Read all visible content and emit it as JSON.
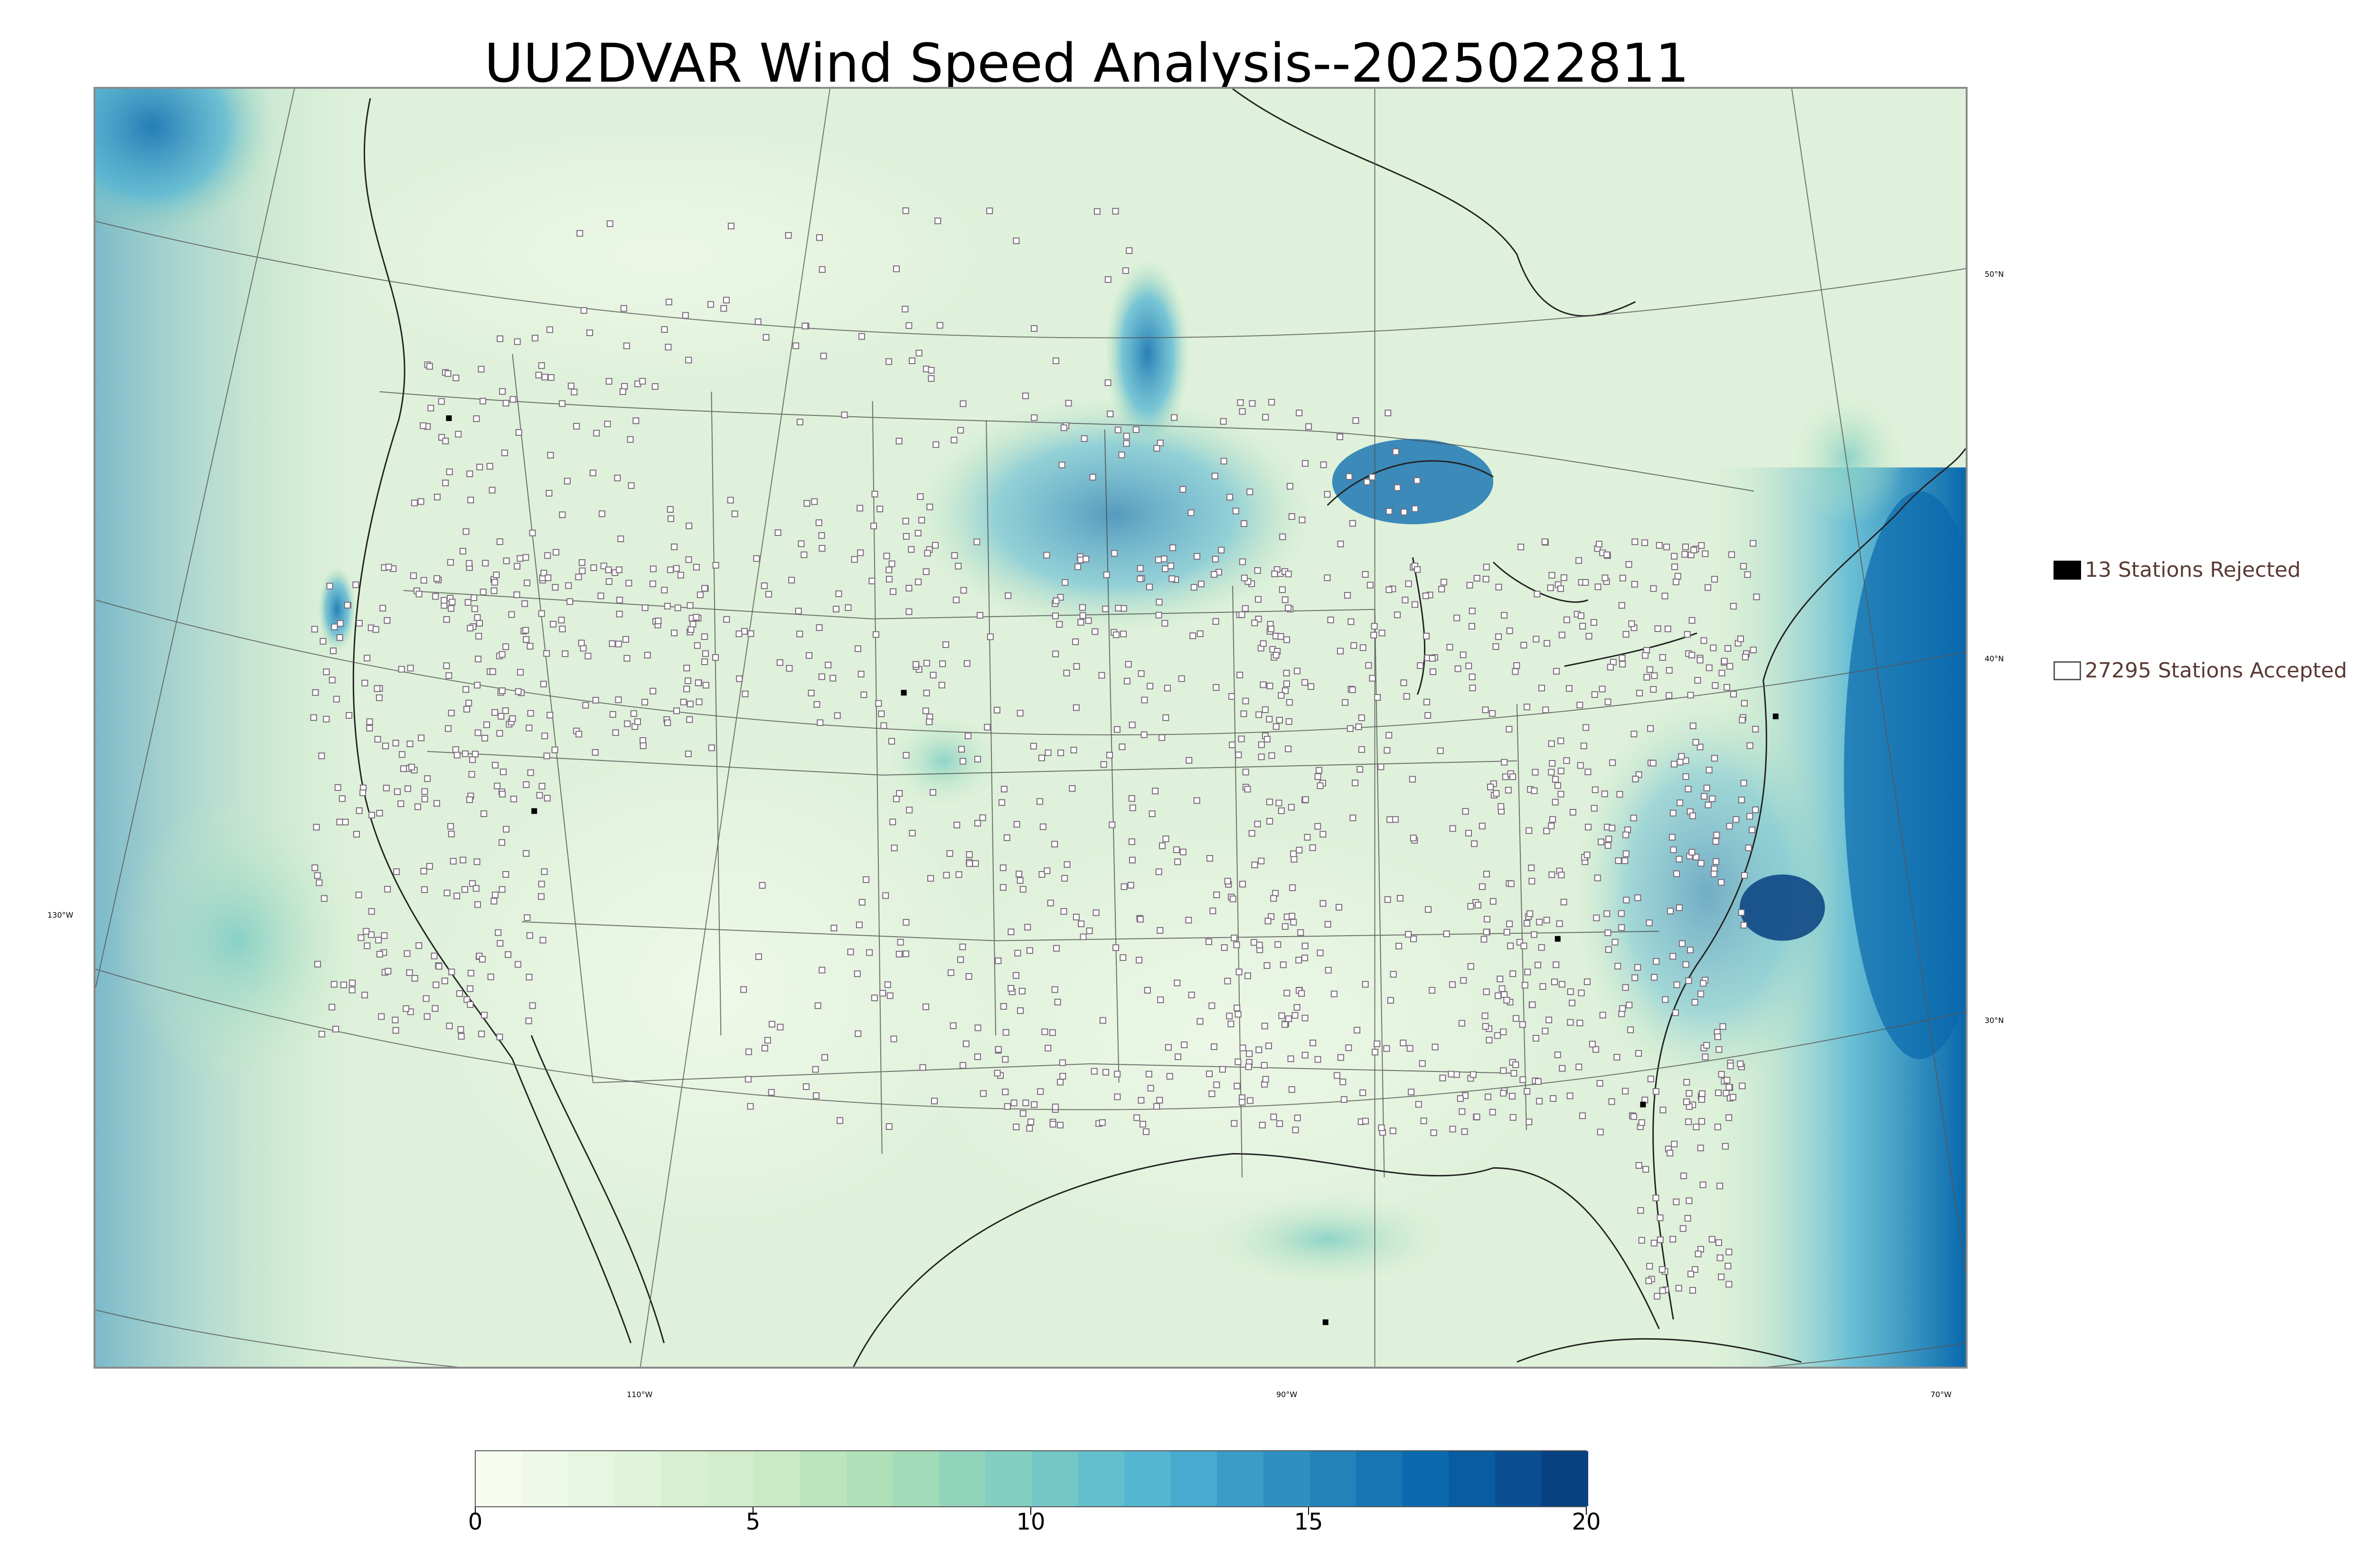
{
  "title": "UU2DVAR Wind Speed Analysis--2025022811",
  "legend": {
    "rejected": {
      "label": "13 Stations Rejected",
      "color": "#000000"
    },
    "accepted": {
      "label": "27295 Stations Accepted",
      "color": "#ffffff"
    }
  },
  "graticule": {
    "lat_labels": [
      "50°N",
      "40°N",
      "30°N"
    ],
    "lon_labels": [
      "130°W",
      "110°W",
      "90°W",
      "70°W"
    ]
  },
  "colorbar": {
    "min": 0,
    "max": 20,
    "ticks": [
      "0",
      "5",
      "10",
      "15",
      "20"
    ],
    "colors": [
      "#f7fcf0",
      "#e0f3db",
      "#ccebc5",
      "#a8ddb5",
      "#7bccc4",
      "#4eb3d3",
      "#2b8cbe",
      "#0868ac",
      "#084081"
    ]
  },
  "colors": {
    "land_base": "#e6f5e1",
    "water_high": "#2b8cbe",
    "station_marker": "#7a6a7a"
  }
}
